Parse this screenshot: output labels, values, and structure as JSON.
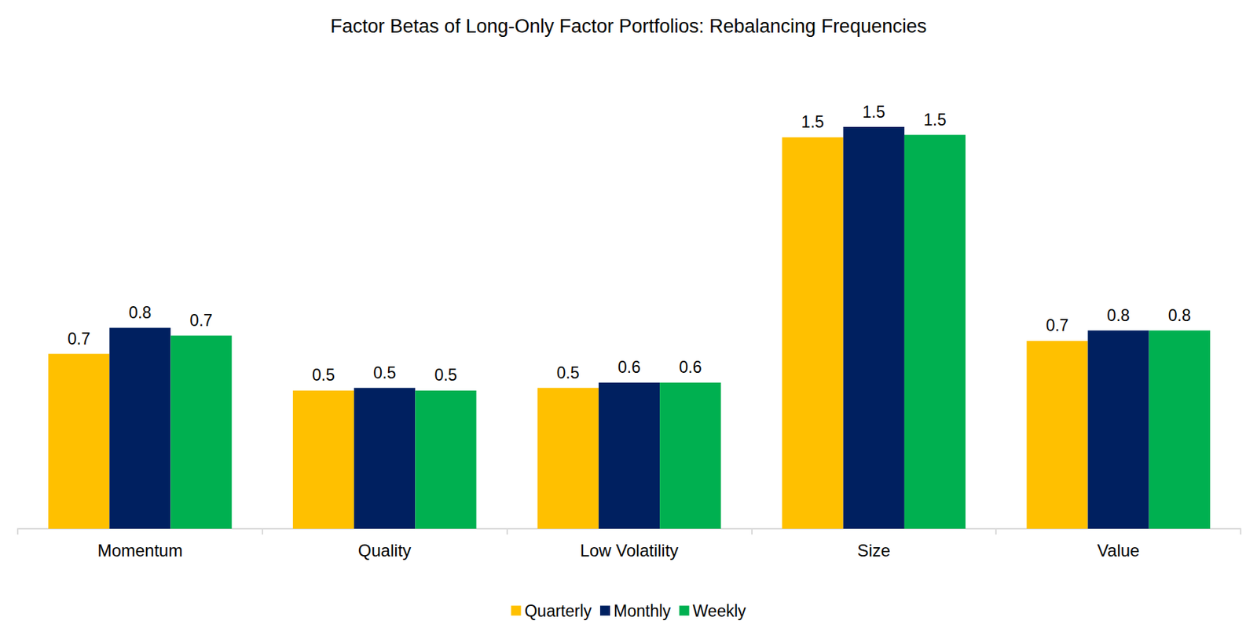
{
  "chart_data": {
    "type": "bar",
    "title": "Factor Betas of Long-Only Factor Portfolios: Rebalancing Frequencies",
    "categories": [
      "Momentum",
      "Quality",
      "Low Volatility",
      "Size",
      "Value"
    ],
    "series": [
      {
        "name": "Quarterly",
        "color": "#FFC000",
        "values": [
          0.67,
          0.53,
          0.54,
          1.5,
          0.72
        ],
        "value_labels": [
          "0.7",
          "0.5",
          "0.5",
          "1.5",
          "0.7"
        ]
      },
      {
        "name": "Monthly",
        "color": "#002060",
        "values": [
          0.77,
          0.54,
          0.56,
          1.54,
          0.76
        ],
        "value_labels": [
          "0.8",
          "0.5",
          "0.6",
          "1.5",
          "0.8"
        ]
      },
      {
        "name": "Weekly",
        "color": "#00B050",
        "values": [
          0.74,
          0.53,
          0.56,
          1.51,
          0.76
        ],
        "value_labels": [
          "0.7",
          "0.5",
          "0.6",
          "1.5",
          "0.8"
        ]
      }
    ],
    "ylim": [
      0,
      1.6
    ],
    "grid": false,
    "legend": "bottom",
    "data_labels": true,
    "tick_labels": "x"
  }
}
